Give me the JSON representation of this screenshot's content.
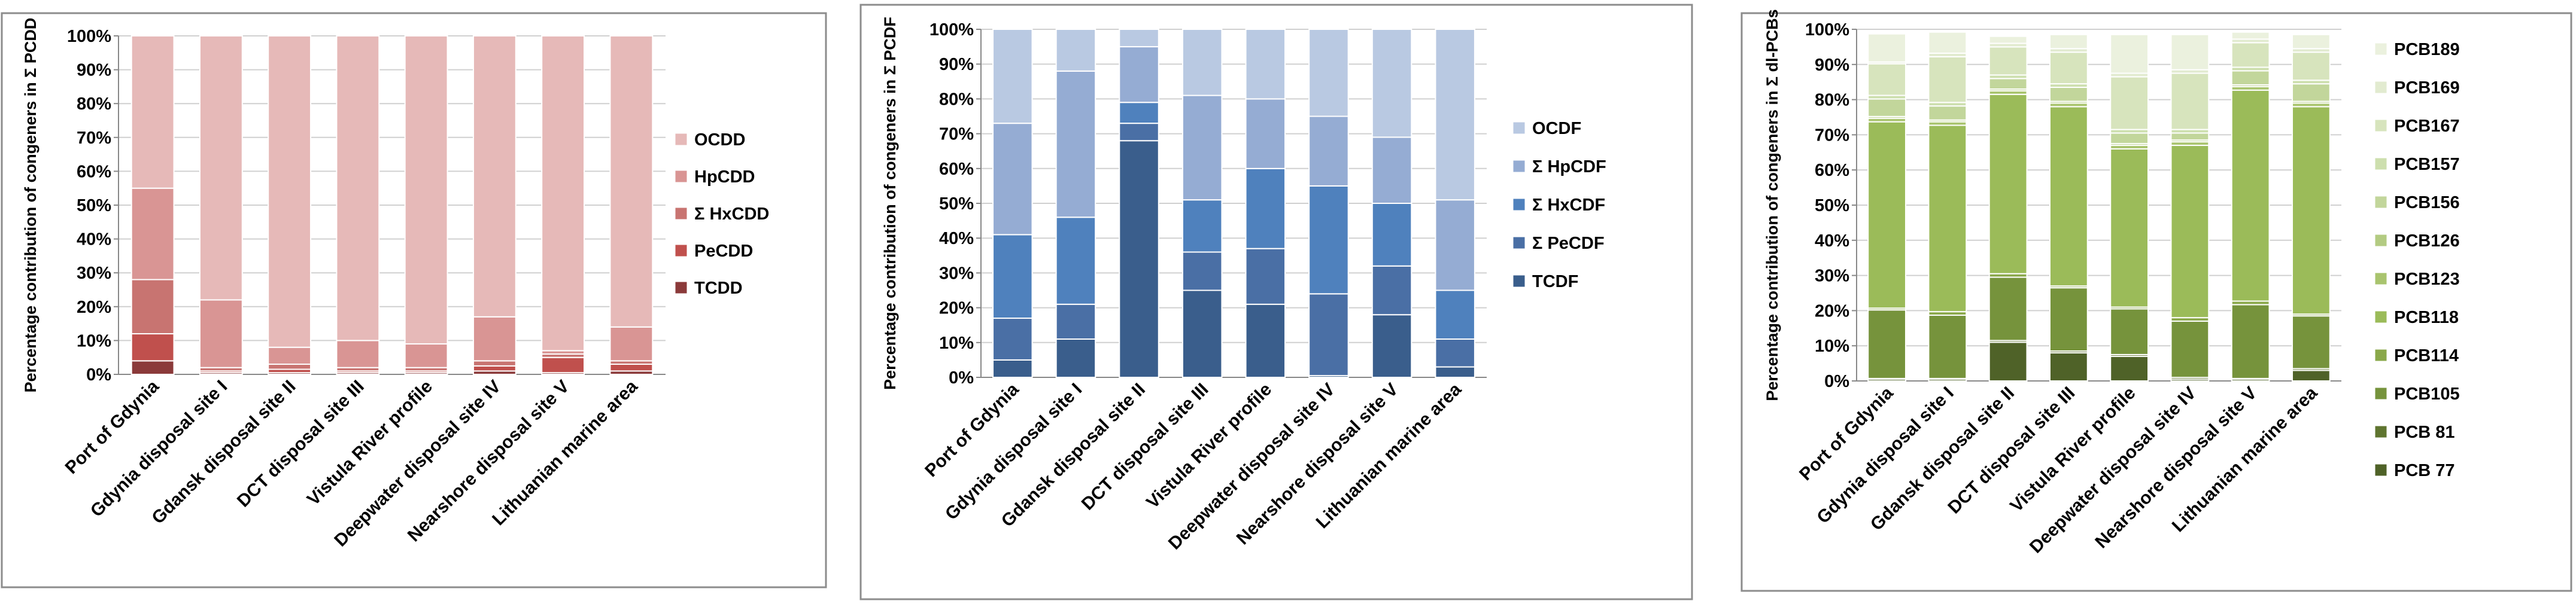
{
  "chart_data": [
    {
      "type": "bar",
      "stacked": true,
      "y_label": "Percentage contribution of congeners in Σ PCDD",
      "categories": [
        "Port of Gdynia",
        "Gdynia disposal site I",
        "Gdansk disposal site II",
        "DCT disposal site III",
        "Vistula River profile",
        "Deepwater disposal site IV",
        "Nearshore disposal site V",
        "Lithuanian marine area"
      ],
      "series": [
        {
          "name": "TCDD",
          "color": "#8b3a3a",
          "values": [
            4,
            0.5,
            0.5,
            0.5,
            0.5,
            1,
            0.5,
            1
          ]
        },
        {
          "name": "PeCDD",
          "color": "#c0504d",
          "values": [
            8,
            0.5,
            1,
            0.5,
            0.5,
            1.5,
            4.5,
            2
          ]
        },
        {
          "name": "Σ HxCDD",
          "color": "#c87471",
          "values": [
            16,
            1,
            1.5,
            1,
            1,
            1.5,
            1,
            1
          ]
        },
        {
          "name": "HpCDD",
          "color": "#d99594",
          "values": [
            27,
            20,
            5,
            8,
            7,
            13,
            1,
            10
          ]
        },
        {
          "name": "OCDD",
          "color": "#e6b9b8",
          "values": [
            45,
            78,
            92,
            90,
            91,
            83,
            93,
            86
          ]
        }
      ],
      "ylim": [
        0,
        100
      ],
      "yticks": [
        {
          "value": 0,
          "label": "0%"
        },
        {
          "value": 10,
          "label": "10%"
        },
        {
          "value": 20,
          "label": "20%"
        },
        {
          "value": 30,
          "label": "30%"
        },
        {
          "value": 40,
          "label": "40%"
        },
        {
          "value": 50,
          "label": "50%"
        },
        {
          "value": 60,
          "label": "60%"
        },
        {
          "value": 70,
          "label": "70%"
        },
        {
          "value": 80,
          "label": "80%"
        },
        {
          "value": 90,
          "label": "90%"
        },
        {
          "value": 100,
          "label": "100%"
        }
      ],
      "grid": true,
      "legend": "right"
    },
    {
      "type": "bar",
      "stacked": true,
      "y_label": "Percentage contribution of congeners in Σ PCDF",
      "categories": [
        "Port of Gdynia",
        "Gdynia disposal site I",
        "Gdansk disposal site II",
        "DCT disposal site III",
        "Vistula River profile",
        "Deepwater disposal site IV",
        "Nearshore disposal site V",
        "Lithuanian marine area"
      ],
      "series": [
        {
          "name": "TCDF",
          "color": "#3a5e8c",
          "values": [
            5,
            11,
            68,
            25,
            21,
            0.5,
            18,
            3
          ]
        },
        {
          "name": "Σ PeCDF",
          "color": "#4a6fa5",
          "values": [
            12,
            10,
            5,
            11,
            16,
            23.5,
            14,
            8
          ]
        },
        {
          "name": "Σ HxCDF",
          "color": "#4f81bd",
          "values": [
            24,
            25,
            6,
            15,
            23,
            31,
            18,
            14
          ]
        },
        {
          "name": "Σ HpCDF",
          "color": "#95acd3",
          "values": [
            32,
            42,
            16,
            30,
            20,
            20,
            19,
            26
          ]
        },
        {
          "name": "OCDF",
          "color": "#b9c9e2",
          "values": [
            27,
            12,
            5,
            19,
            20,
            25,
            31,
            49
          ]
        }
      ],
      "ylim": [
        0,
        100
      ],
      "yticks": [
        {
          "value": 0,
          "label": "0%"
        },
        {
          "value": 10,
          "label": "10%"
        },
        {
          "value": 20,
          "label": "20%"
        },
        {
          "value": 30,
          "label": "30%"
        },
        {
          "value": 40,
          "label": "40%"
        },
        {
          "value": 50,
          "label": "50%"
        },
        {
          "value": 60,
          "label": "60%"
        },
        {
          "value": 70,
          "label": "70%"
        },
        {
          "value": 80,
          "label": "80%"
        },
        {
          "value": 90,
          "label": "90%"
        },
        {
          "value": 100,
          "label": "100%"
        }
      ],
      "grid": true,
      "legend": "right"
    },
    {
      "type": "bar",
      "stacked": true,
      "y_label": "Percentage contribution of congeners in  Σ dl-PCBs",
      "categories": [
        "Port of Gdynia",
        "Gdynia disposal site I",
        "Gdansk disposal site II",
        "DCT disposal site III",
        "Vistula River profile",
        "Deepwater disposal site IV",
        "Nearshore disposal site V",
        "Lithuanian marine area"
      ],
      "series": [
        {
          "name": "PCB 77",
          "color": "#4f6228",
          "values": [
            0.5,
            0.5,
            11,
            8,
            7,
            0.5,
            0.5,
            3
          ]
        },
        {
          "name": "PCB 81",
          "color": "#5f7530",
          "values": [
            0.2,
            0.2,
            0.5,
            0.5,
            0.5,
            0.5,
            0.2,
            0.5
          ]
        },
        {
          "name": "PCB105",
          "color": "#76933c",
          "values": [
            19.5,
            18,
            18,
            18,
            13,
            16,
            21,
            15
          ]
        },
        {
          "name": "PCB114",
          "color": "#8aa84a",
          "values": [
            0.5,
            1,
            1,
            0.5,
            0.5,
            1,
            1,
            0.5
          ]
        },
        {
          "name": "PCB118",
          "color": "#9bbb59",
          "values": [
            53,
            53,
            51,
            51,
            45,
            49,
            60,
            59
          ]
        },
        {
          "name": "PCB123",
          "color": "#a9c46e",
          "values": [
            1,
            1,
            1,
            1,
            1,
            1,
            1,
            1
          ]
        },
        {
          "name": "PCB126",
          "color": "#b3cb82",
          "values": [
            0.5,
            0.5,
            0.5,
            0.5,
            0.5,
            0.5,
            0.5,
            0.5
          ]
        },
        {
          "name": "PCB156",
          "color": "#c2d69b",
          "values": [
            5,
            4,
            3,
            4,
            3,
            2,
            4,
            5
          ]
        },
        {
          "name": "PCB157",
          "color": "#cddfae",
          "values": [
            1,
            1,
            1,
            1,
            1,
            1,
            1,
            1
          ]
        },
        {
          "name": "PCB167",
          "color": "#d7e4bd",
          "values": [
            9,
            13,
            8,
            9,
            15,
            16,
            7,
            8
          ]
        },
        {
          "name": "PCB169",
          "color": "#e2ebd0",
          "values": [
            0.5,
            1,
            1,
            1,
            1,
            1,
            1,
            1
          ]
        },
        {
          "name": "PCB189",
          "color": "#ebf1de",
          "values": [
            8,
            6,
            2,
            4,
            11,
            10,
            2,
            4
          ]
        }
      ],
      "ylim": [
        0,
        100
      ],
      "yticks": [
        {
          "value": 0,
          "label": "0%"
        },
        {
          "value": 10,
          "label": "10%"
        },
        {
          "value": 20,
          "label": "20%"
        },
        {
          "value": 30,
          "label": "30%"
        },
        {
          "value": 40,
          "label": "40%"
        },
        {
          "value": 50,
          "label": "50%"
        },
        {
          "value": 60,
          "label": "60%"
        },
        {
          "value": 70,
          "label": "70%"
        },
        {
          "value": 80,
          "label": "80%"
        },
        {
          "value": 90,
          "label": "90%"
        },
        {
          "value": 100,
          "label": "100%"
        }
      ],
      "grid": true,
      "legend": "right"
    }
  ]
}
